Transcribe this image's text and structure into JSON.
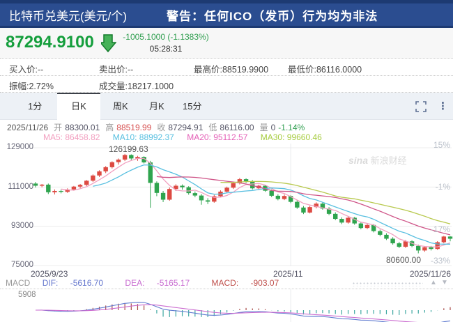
{
  "header": {
    "title": "比特币兑美元(美元/个)",
    "warning": "警告：任何ICO（发币）行为均为非法"
  },
  "quote": {
    "price": "87294.9100",
    "change": "-1005.1000 (-1.1383%)",
    "time": "05:28:31",
    "fields": [
      {
        "label": "买入价:",
        "value": "--"
      },
      {
        "label": "卖出价:",
        "value": "--"
      },
      {
        "label": "最高价:",
        "value": "88519.9900"
      },
      {
        "label": "最低价:",
        "value": "86116.0000"
      },
      {
        "label": "振幅:",
        "value": "2.72%"
      },
      {
        "label": "成交量:",
        "value": "18217.1000"
      }
    ]
  },
  "tabs": {
    "items": [
      {
        "label": "1分"
      },
      {
        "label": "日K"
      },
      {
        "label": "周K"
      },
      {
        "label": "月K"
      },
      {
        "label": "15分"
      }
    ]
  },
  "ohlc_bar": {
    "date": "2025/11/26",
    "open_label": "开",
    "open": "88300.01",
    "high_label": "高",
    "high": "88519.99",
    "close_label": "收",
    "close": "87294.91",
    "low_label": "低",
    "low": "86116.00",
    "vol_label": "量",
    "vol": "0",
    "change_pct": "-1.14%"
  },
  "ma_bar": {
    "ma5_label": "MA5:",
    "ma5": "86458.82",
    "ma10_label": "MA10:",
    "ma10": "88992.37",
    "ma20_label": "MA20:",
    "ma20": "95112.57",
    "ma30_label": "MA30:",
    "ma30": "99660.46"
  },
  "macd_bar": {
    "title": "MACD",
    "dif_label": "DIF:",
    "dif": "-5616.70",
    "dea_label": "DEA:",
    "dea": "-5165.17",
    "macd_label": "MACD:",
    "macd": "-903.07",
    "axis_max": "5908"
  },
  "watermark": {
    "logo": "sina",
    "text": " 新浪财经"
  },
  "chart_data": {
    "type": "candlestick",
    "title": "比特币兑美元 日K",
    "x_labels": {
      "start": "2025/9/23",
      "mid": "2025/11",
      "end": "2025/11/26"
    },
    "price_ticks": [
      129000,
      111000,
      93000,
      75000
    ],
    "pct_ticks": [
      "15%",
      "-1%",
      "-17%",
      "-33%"
    ],
    "high_annotation": "126199.63",
    "low_annotation": "80600.00",
    "ylim": [
      73400,
      132850
    ],
    "mid_gridline_index": 40,
    "up_color": "#dd4a42",
    "down_color": "#2fa44e",
    "ma_lines": [
      {
        "period": 5,
        "color": "#f2a0c0"
      },
      {
        "period": 10,
        "color": "#57bfe0"
      },
      {
        "period": 20,
        "color": "#cf5588"
      },
      {
        "period": 30,
        "color": "#b8c94e"
      }
    ],
    "macd_colors": {
      "dif": "#5f7bd0",
      "dea": "#cb6cd0",
      "hist_pos": "#a84b48",
      "hist_neg": "#3fa8a2"
    },
    "candles": [
      [
        112600,
        113300,
        110800,
        111600
      ],
      [
        111600,
        112400,
        110900,
        112100
      ],
      [
        112100,
        112600,
        107800,
        108600
      ],
      [
        108600,
        109900,
        107600,
        109200
      ],
      [
        109200,
        109800,
        108100,
        108800
      ],
      [
        108800,
        110400,
        108300,
        109900
      ],
      [
        109900,
        111500,
        109300,
        111200
      ],
      [
        111200,
        112400,
        110500,
        112000
      ],
      [
        112000,
        114200,
        111400,
        113900
      ],
      [
        113900,
        116800,
        113300,
        116300
      ],
      [
        116300,
        118700,
        115600,
        118200
      ],
      [
        118200,
        120600,
        117400,
        120100
      ],
      [
        120100,
        122800,
        119500,
        122400
      ],
      [
        122400,
        124100,
        121300,
        123600
      ],
      [
        123600,
        126199.63,
        122900,
        125700
      ],
      [
        125700,
        126000,
        123400,
        124100
      ],
      [
        124100,
        125300,
        123000,
        124800
      ],
      [
        124800,
        125100,
        121800,
        122300
      ],
      [
        122300,
        123000,
        101500,
        112900
      ],
      [
        112900,
        113600,
        106800,
        108300
      ],
      [
        108300,
        109200,
        104100,
        105200
      ],
      [
        105200,
        110800,
        104700,
        110100
      ],
      [
        110100,
        112300,
        109200,
        111600
      ],
      [
        111600,
        112200,
        109800,
        110900
      ],
      [
        110900,
        111400,
        107500,
        108200
      ],
      [
        108200,
        109000,
        106300,
        107100
      ],
      [
        107100,
        107800,
        102900,
        104900
      ],
      [
        104900,
        105900,
        103200,
        104300
      ],
      [
        104300,
        107400,
        103800,
        106800
      ],
      [
        106800,
        109500,
        106200,
        108900
      ],
      [
        108900,
        111200,
        108300,
        110700
      ],
      [
        110700,
        113400,
        110100,
        112800
      ],
      [
        112800,
        115200,
        112200,
        114600
      ],
      [
        114600,
        115000,
        112900,
        113700
      ],
      [
        113700,
        114200,
        109900,
        110400
      ],
      [
        110400,
        112100,
        109800,
        111600
      ],
      [
        111600,
        112000,
        108800,
        109300
      ],
      [
        109300,
        109900,
        106400,
        107000
      ],
      [
        107000,
        107700,
        104900,
        105500
      ],
      [
        105500,
        107600,
        105000,
        106900
      ],
      [
        106900,
        107200,
        103600,
        104200
      ],
      [
        104200,
        104900,
        101000,
        101600
      ],
      [
        101600,
        102300,
        98600,
        99300
      ],
      [
        99300,
        102400,
        98900,
        101800
      ],
      [
        101800,
        104000,
        101200,
        103400
      ],
      [
        103400,
        103900,
        100600,
        101100
      ],
      [
        101100,
        101800,
        98100,
        98700
      ],
      [
        98700,
        99400,
        95800,
        96400
      ],
      [
        96400,
        97100,
        94000,
        94700
      ],
      [
        94700,
        97500,
        94200,
        96900
      ],
      [
        96900,
        97300,
        93700,
        94300
      ],
      [
        94300,
        95000,
        91600,
        92200
      ],
      [
        92200,
        94100,
        91700,
        93600
      ],
      [
        93600,
        94000,
        90200,
        90800
      ],
      [
        90800,
        91500,
        88400,
        89100
      ],
      [
        89100,
        89800,
        86700,
        87300
      ],
      [
        87300,
        88000,
        84600,
        85200
      ],
      [
        85200,
        85900,
        83000,
        83600
      ],
      [
        83600,
        86700,
        83100,
        86100
      ],
      [
        86100,
        86600,
        83400,
        84000
      ],
      [
        84000,
        84600,
        80600,
        81900
      ],
      [
        81900,
        83900,
        81300,
        83400
      ],
      [
        83400,
        84000,
        81900,
        82600
      ],
      [
        82600,
        86200,
        82200,
        85700
      ],
      [
        85700,
        88600,
        85200,
        88300
      ],
      [
        88300.01,
        88519.99,
        86116,
        87294.91
      ]
    ]
  }
}
